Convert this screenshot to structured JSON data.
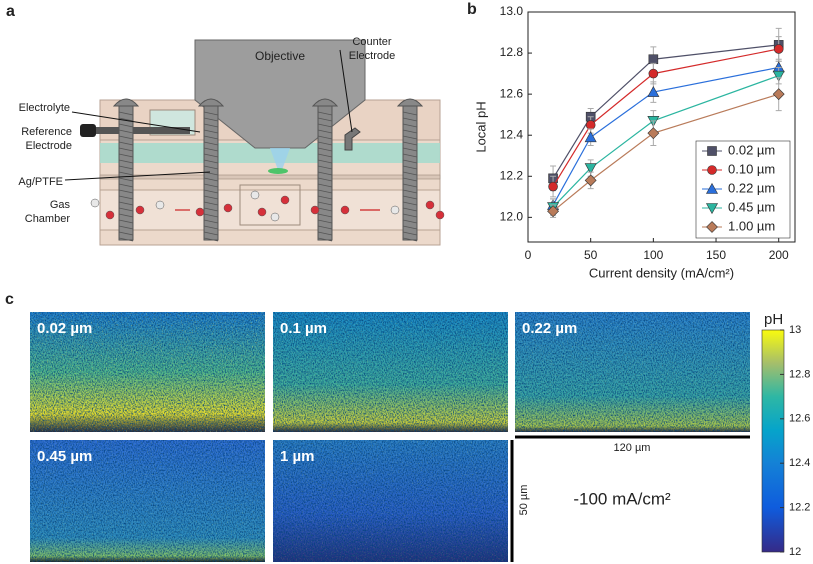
{
  "panel_a": {
    "label": "a",
    "objective": "Objective",
    "counter_electrode": [
      "Counter",
      "Electrode"
    ],
    "electrolyte": "Electrolyte",
    "reference_electrode": [
      "Reference",
      "Electrode"
    ],
    "ag_ptfe": "Ag/PTFE",
    "gas_chamber": [
      "Gas",
      "Chamber"
    ]
  },
  "chart_data": {
    "type": "line",
    "panel_label": "b",
    "xlabel": "Current density (mA/cm²)",
    "ylabel": "Local pH",
    "x": [
      20,
      50,
      100,
      200
    ],
    "series": [
      {
        "name": "0.02 µm",
        "color": "#4f5068",
        "marker": "square",
        "values": [
          12.19,
          12.49,
          12.77,
          12.84
        ],
        "errors": [
          0.06,
          0.04,
          0.06,
          0.08
        ]
      },
      {
        "name": "0.10 µm",
        "color": "#d42a2a",
        "marker": "circle",
        "values": [
          12.15,
          12.45,
          12.7,
          12.82
        ],
        "errors": [
          0.05,
          0.04,
          0.05,
          0.06
        ]
      },
      {
        "name": "0.22 µm",
        "color": "#2a6fdb",
        "marker": "triangle-up",
        "values": [
          12.06,
          12.39,
          12.61,
          12.73
        ],
        "errors": [
          0.03,
          0.04,
          0.05,
          0.04
        ]
      },
      {
        "name": "0.45 µm",
        "color": "#2bb5a0",
        "marker": "triangle-down",
        "values": [
          12.05,
          12.24,
          12.47,
          12.69
        ],
        "errors": [
          0.04,
          0.04,
          0.05,
          0.04
        ]
      },
      {
        "name": "1.00 µm",
        "color": "#b97b5a",
        "marker": "diamond",
        "values": [
          12.03,
          12.18,
          12.41,
          12.6
        ],
        "errors": [
          0.03,
          0.04,
          0.06,
          0.08
        ]
      }
    ],
    "xlim": [
      0,
      213
    ],
    "xticks": [
      0,
      50,
      100,
      150,
      200
    ],
    "ylim": [
      11.88,
      13.0
    ],
    "yticks": [
      {
        "value": 12,
        "label": "12.0"
      },
      12.2,
      12.4,
      12.6,
      12.8,
      {
        "value": 13,
        "label": "13.0"
      }
    ],
    "legend": "lower-right"
  },
  "panel_c": {
    "label": "c",
    "tiles": [
      "0.02 µm",
      "0.1 µm",
      "0.22 µm",
      "0.45 µm",
      "1 µm"
    ],
    "scale_x": "120 µm",
    "scale_y": "50 µm",
    "condition": "-100 mA/cm²",
    "colorbar": {
      "title": "pH",
      "lim": [
        12,
        13
      ],
      "ticks": [
        13,
        12.8,
        12.6,
        12.4,
        12.2,
        12
      ]
    }
  }
}
